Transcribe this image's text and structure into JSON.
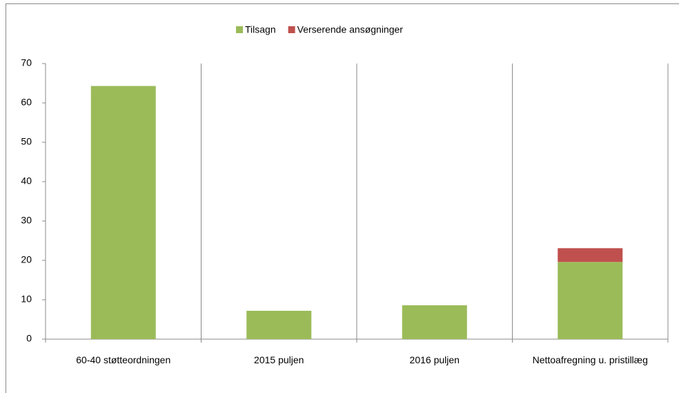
{
  "chart_data": {
    "type": "stacked_bar",
    "categories": [
      "60-40 støtteordningen",
      "2015 puljen",
      "2016 puljen",
      "Nettoafregning u. pristillæg"
    ],
    "series": [
      {
        "name": "Tilsagn",
        "color": "#9bbb59",
        "values": [
          64.3,
          7.2,
          8.6,
          19.6
        ]
      },
      {
        "name": "Verserende ansøgninger",
        "color": "#c0504d",
        "values": [
          null,
          null,
          null,
          3.5
        ]
      }
    ],
    "ylim": [
      0,
      70
    ],
    "yticks": [
      0,
      10,
      20,
      30,
      40,
      50,
      60,
      70
    ],
    "legend": "top",
    "category_dividers": true
  }
}
